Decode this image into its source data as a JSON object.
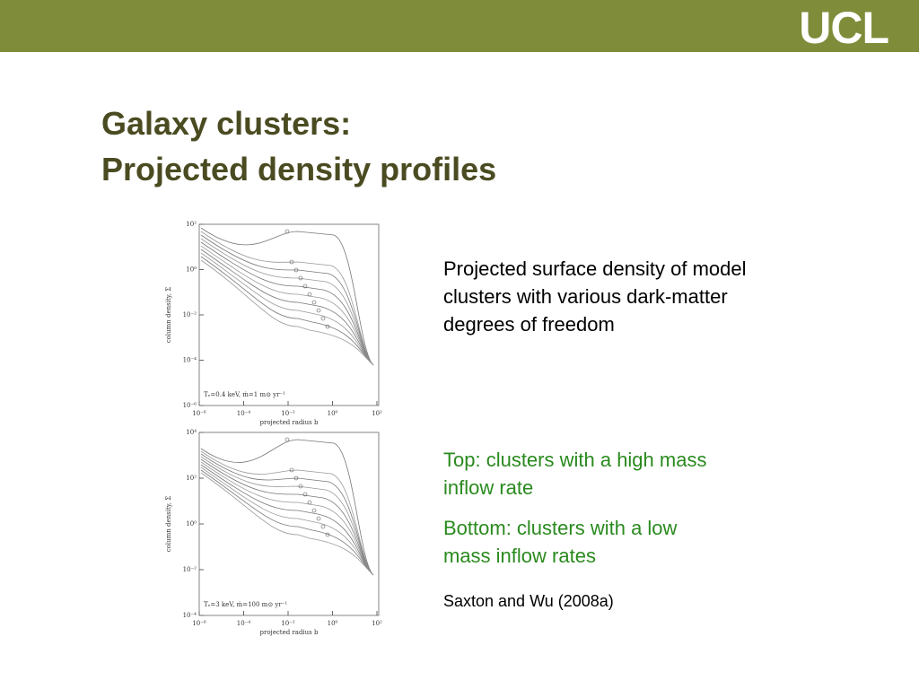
{
  "header": {
    "logo": "UCL"
  },
  "title": {
    "lines": [
      "Galaxy clusters:",
      "Projected density profiles"
    ]
  },
  "figures": [
    {
      "y_label": "column density, Σ",
      "x_label": "projected radius b",
      "y_ticks": [
        "10²",
        "10⁰",
        "10⁻²",
        "10⁻⁴",
        "10⁻⁶"
      ],
      "x_ticks": [
        "10⁻⁶",
        "10⁻⁴",
        "10⁻²",
        "10⁰",
        "10²"
      ],
      "annotation": "Tₑ=0.4 keV,   ṁ=1 m⊙ yr⁻¹"
    },
    {
      "y_label": "column density, Σ",
      "x_label": "projected radius b",
      "y_ticks": [
        "10⁴",
        "10²",
        "10⁰",
        "10⁻²",
        "10⁻⁴"
      ],
      "x_ticks": [
        "10⁻⁶",
        "10⁻⁴",
        "10⁻²",
        "10⁰",
        "10²"
      ],
      "annotation": "Tₑ=3 keV,   ṁ=100 m⊙ yr⁻¹"
    }
  ],
  "text": {
    "description": [
      "Projected surface density of model",
      "clusters with various dark-matter",
      "degrees of freedom"
    ],
    "top_note": [
      "Top: clusters with a high mass",
      "inflow rate"
    ],
    "bottom_note": [
      "Bottom: clusters with a low",
      "mass inflow rates"
    ],
    "citation": "Saxton and Wu (2008a)"
  }
}
